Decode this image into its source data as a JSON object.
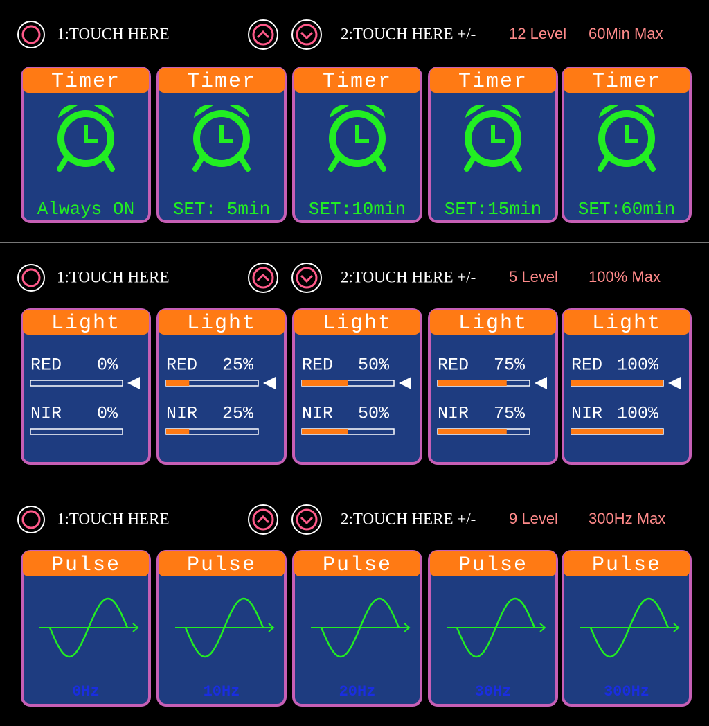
{
  "sections": [
    {
      "touch1": "1:TOUCH HERE",
      "touch2": "2:TOUCH HERE +/-",
      "levels": "12 Level",
      "max": "60Min Max",
      "panels": [
        {
          "title": "Timer",
          "label": "Always ON"
        },
        {
          "title": "Timer",
          "label": "SET: 5min"
        },
        {
          "title": "Timer",
          "label": "SET:10min"
        },
        {
          "title": "Timer",
          "label": "SET:15min"
        },
        {
          "title": "Timer",
          "label": "SET:60min"
        }
      ]
    },
    {
      "touch1": "1:TOUCH HERE",
      "touch2": "2:TOUCH HERE +/-",
      "levels": "5 Level",
      "max": "100% Max",
      "panels": [
        {
          "title": "Light",
          "red_label": "RED",
          "red_value": 0,
          "red_value_label": "0%",
          "nir_label": "NIR",
          "nir_value": 0,
          "nir_value_label": "0%"
        },
        {
          "title": "Light",
          "red_label": "RED",
          "red_value": 25,
          "red_value_label": "25%",
          "nir_label": "NIR",
          "nir_value": 25,
          "nir_value_label": "25%"
        },
        {
          "title": "Light",
          "red_label": "RED",
          "red_value": 50,
          "red_value_label": "50%",
          "nir_label": "NIR",
          "nir_value": 50,
          "nir_value_label": "50%"
        },
        {
          "title": "Light",
          "red_label": "RED",
          "red_value": 75,
          "red_value_label": "75%",
          "nir_label": "NIR",
          "nir_value": 75,
          "nir_value_label": "75%"
        },
        {
          "title": "Light",
          "red_label": "RED",
          "red_value": 100,
          "red_value_label": "100%",
          "nir_label": "NIR",
          "nir_value": 100,
          "nir_value_label": "100%"
        }
      ]
    },
    {
      "touch1": "1:TOUCH HERE",
      "touch2": "2:TOUCH HERE +/-",
      "levels": "9 Level",
      "max": "300Hz Max",
      "panels": [
        {
          "title": "Pulse",
          "label": "0Hz"
        },
        {
          "title": "Pulse",
          "label": "10Hz"
        },
        {
          "title": "Pulse",
          "label": "20Hz"
        },
        {
          "title": "Pulse",
          "label": "30Hz"
        },
        {
          "title": "Pulse",
          "label": "300Hz"
        }
      ]
    }
  ]
}
